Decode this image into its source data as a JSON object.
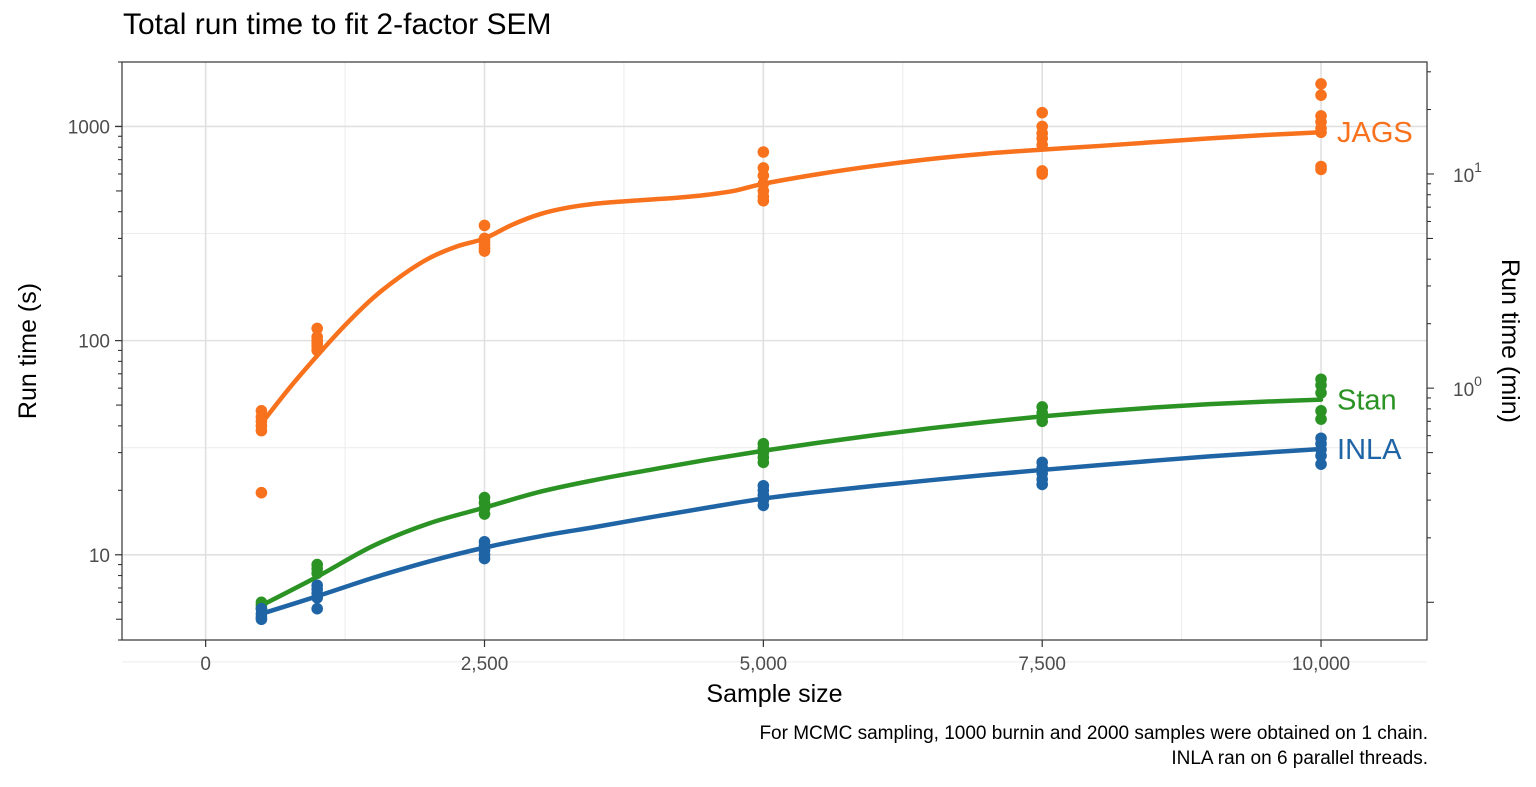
{
  "chart_data": {
    "type": "scatter",
    "title": "Total run time to fit 2-factor SEM",
    "xlabel": "Sample size",
    "ylabel": "Run time (s)",
    "y2label": "Run time (min)",
    "xlim": [
      -750,
      10950
    ],
    "ylim": [
      4,
      2000
    ],
    "yscale": "log10",
    "x_ticks": [
      0,
      2500,
      5000,
      7500,
      10000
    ],
    "x_tick_labels": [
      "0",
      "2,500",
      "5,000",
      "7,500",
      "10,000"
    ],
    "y_ticks": [
      10,
      100,
      1000
    ],
    "y_tick_labels": [
      "10",
      "100",
      "1000"
    ],
    "y2_ticks": [
      1,
      10
    ],
    "y2_tick_base": "10",
    "y2_tick_exponents": [
      "0",
      "1"
    ],
    "grid": true,
    "legend": "direct labels at line ends",
    "series": [
      {
        "name": "JAGS",
        "color": "#F8711C",
        "points": [
          [
            500,
            47
          ],
          [
            500,
            44
          ],
          [
            500,
            42
          ],
          [
            500,
            40
          ],
          [
            500,
            38
          ],
          [
            500,
            19.5
          ],
          [
            1000,
            114
          ],
          [
            1000,
            104
          ],
          [
            1000,
            100
          ],
          [
            1000,
            97
          ],
          [
            1000,
            94
          ],
          [
            1000,
            90
          ],
          [
            2500,
            345
          ],
          [
            2500,
            300
          ],
          [
            2500,
            290
          ],
          [
            2500,
            280
          ],
          [
            2500,
            270
          ],
          [
            2500,
            262
          ],
          [
            5000,
            760
          ],
          [
            5000,
            640
          ],
          [
            5000,
            590
          ],
          [
            5000,
            540
          ],
          [
            5000,
            500
          ],
          [
            5000,
            470
          ],
          [
            5000,
            450
          ],
          [
            7500,
            1160
          ],
          [
            7500,
            1000
          ],
          [
            7500,
            930
          ],
          [
            7500,
            880
          ],
          [
            7500,
            820
          ],
          [
            7500,
            620
          ],
          [
            7500,
            600
          ],
          [
            10000,
            1580
          ],
          [
            10000,
            1400
          ],
          [
            10000,
            1120
          ],
          [
            10000,
            1050
          ],
          [
            10000,
            980
          ],
          [
            10000,
            940
          ],
          [
            10000,
            650
          ],
          [
            10000,
            630
          ]
        ],
        "fit": [
          [
            500,
            41
          ],
          [
            750,
            60
          ],
          [
            1000,
            85
          ],
          [
            1250,
            118
          ],
          [
            1500,
            158
          ],
          [
            1750,
            200
          ],
          [
            2000,
            242
          ],
          [
            2250,
            275
          ],
          [
            2500,
            300
          ],
          [
            2750,
            348
          ],
          [
            3000,
            390
          ],
          [
            3250,
            418
          ],
          [
            3500,
            436
          ],
          [
            3750,
            447
          ],
          [
            4000,
            456
          ],
          [
            4250,
            466
          ],
          [
            4500,
            480
          ],
          [
            4750,
            502
          ],
          [
            5000,
            540
          ],
          [
            5500,
            600
          ],
          [
            6000,
            655
          ],
          [
            6500,
            705
          ],
          [
            7000,
            747
          ],
          [
            7500,
            780
          ],
          [
            8000,
            810
          ],
          [
            8500,
            845
          ],
          [
            9000,
            880
          ],
          [
            9500,
            912
          ],
          [
            10000,
            940
          ]
        ]
      },
      {
        "name": "Stan",
        "color": "#2B9324",
        "points": [
          [
            500,
            6.0
          ],
          [
            500,
            5.8
          ],
          [
            500,
            5.6
          ],
          [
            1000,
            9.0
          ],
          [
            1000,
            8.6
          ],
          [
            1000,
            8.2
          ],
          [
            2500,
            18.5
          ],
          [
            2500,
            17.5
          ],
          [
            2500,
            16.5
          ],
          [
            2500,
            15.5
          ],
          [
            5000,
            33
          ],
          [
            5000,
            31.5
          ],
          [
            5000,
            30
          ],
          [
            5000,
            28.5
          ],
          [
            5000,
            27
          ],
          [
            7500,
            49
          ],
          [
            7500,
            46
          ],
          [
            7500,
            44
          ],
          [
            7500,
            42
          ],
          [
            10000,
            66
          ],
          [
            10000,
            62
          ],
          [
            10000,
            57
          ],
          [
            10000,
            47
          ],
          [
            10000,
            43
          ]
        ],
        "fit": [
          [
            500,
            5.8
          ],
          [
            1000,
            7.9
          ],
          [
            1500,
            11.0
          ],
          [
            2000,
            14.0
          ],
          [
            2500,
            16.6
          ],
          [
            3000,
            19.7
          ],
          [
            3500,
            22.4
          ],
          [
            4000,
            25.0
          ],
          [
            4500,
            27.8
          ],
          [
            5000,
            30.6
          ],
          [
            5500,
            33.4
          ],
          [
            6000,
            36.2
          ],
          [
            6500,
            39.0
          ],
          [
            7000,
            41.7
          ],
          [
            7500,
            44.3
          ],
          [
            8000,
            46.6
          ],
          [
            8500,
            48.7
          ],
          [
            9000,
            50.5
          ],
          [
            9500,
            51.9
          ],
          [
            10000,
            53
          ]
        ]
      },
      {
        "name": "INLA",
        "color": "#1F65A6",
        "points": [
          [
            500,
            5.6
          ],
          [
            500,
            5.3
          ],
          [
            500,
            5.1
          ],
          [
            500,
            5.0
          ],
          [
            1000,
            7.2
          ],
          [
            1000,
            6.9
          ],
          [
            1000,
            6.6
          ],
          [
            1000,
            6.3
          ],
          [
            1000,
            5.6
          ],
          [
            2500,
            11.5
          ],
          [
            2500,
            11.0
          ],
          [
            2500,
            10.5
          ],
          [
            2500,
            10.0
          ],
          [
            2500,
            9.6
          ],
          [
            5000,
            21
          ],
          [
            5000,
            20
          ],
          [
            5000,
            19
          ],
          [
            5000,
            18
          ],
          [
            5000,
            17
          ],
          [
            7500,
            27
          ],
          [
            7500,
            25.5
          ],
          [
            7500,
            24
          ],
          [
            7500,
            22.5
          ],
          [
            7500,
            21.3
          ],
          [
            10000,
            35
          ],
          [
            10000,
            33
          ],
          [
            10000,
            31
          ],
          [
            10000,
            29
          ],
          [
            10000,
            26.5
          ]
        ],
        "fit": [
          [
            500,
            5.3
          ],
          [
            1000,
            6.4
          ],
          [
            1500,
            7.8
          ],
          [
            2000,
            9.3
          ],
          [
            2500,
            10.8
          ],
          [
            3000,
            12.2
          ],
          [
            3500,
            13.5
          ],
          [
            4000,
            15.0
          ],
          [
            4500,
            16.6
          ],
          [
            5000,
            18.3
          ],
          [
            5500,
            19.7
          ],
          [
            6000,
            21.0
          ],
          [
            6500,
            22.3
          ],
          [
            7000,
            23.6
          ],
          [
            7500,
            24.9
          ],
          [
            8000,
            26.2
          ],
          [
            8500,
            27.5
          ],
          [
            9000,
            28.8
          ],
          [
            9500,
            30.0
          ],
          [
            10000,
            31.2
          ]
        ]
      }
    ],
    "caption_lines": [
      "For MCMC sampling, 1000 burnin and 2000 samples were obtained on 1 chain.",
      "INLA ran on 6 parallel threads."
    ]
  }
}
